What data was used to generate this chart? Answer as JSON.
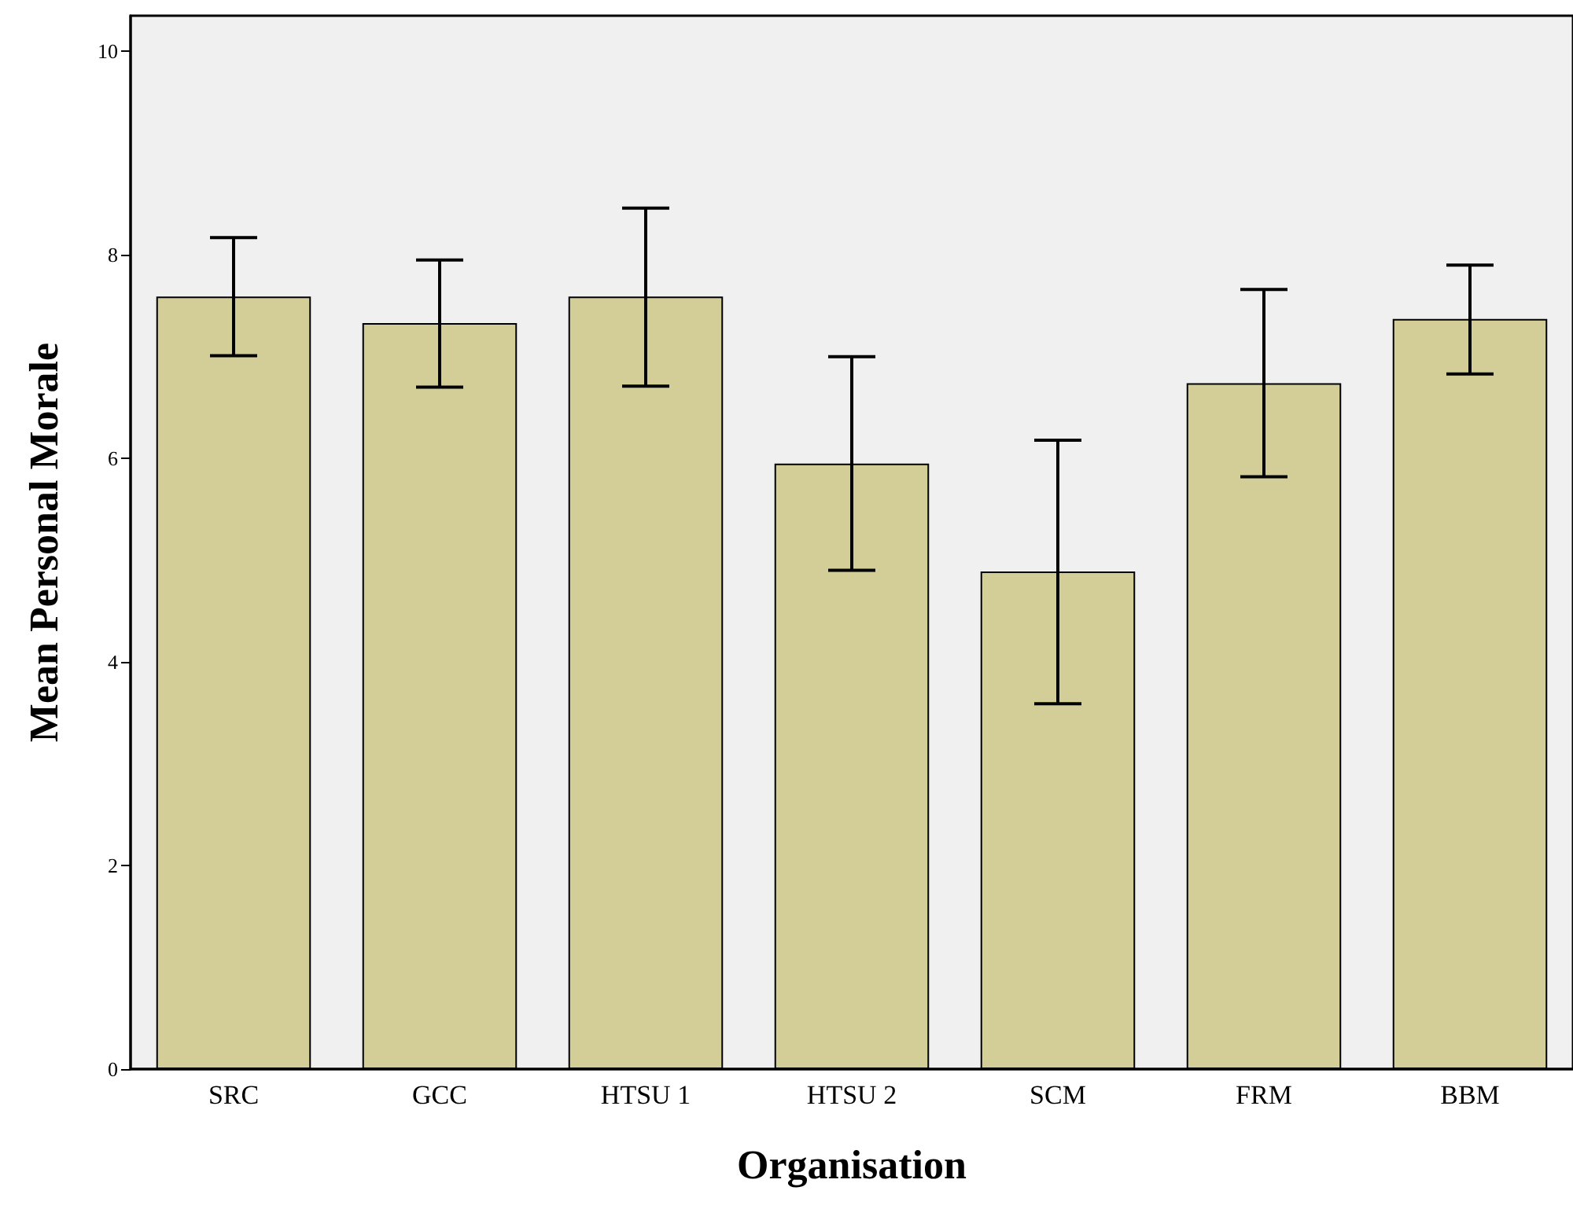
{
  "chart_data": {
    "type": "bar",
    "xlabel": "Organisation",
    "ylabel": "Mean Personal Morale",
    "categories": [
      "SRC",
      "GCC",
      "HTSU 1",
      "HTSU 2",
      "SCM",
      "FRM",
      "BBM"
    ],
    "values": [
      7.59,
      7.33,
      7.59,
      5.95,
      4.89,
      6.74,
      7.37
    ],
    "errors": [
      [
        7.01,
        8.17
      ],
      [
        6.7,
        7.95
      ],
      [
        6.71,
        8.46
      ],
      [
        4.9,
        7.0
      ],
      [
        3.59,
        6.18
      ],
      [
        5.82,
        7.66
      ],
      [
        6.83,
        7.9
      ]
    ],
    "color": "#d3ce98",
    "ylim": [
      0,
      10.35
    ],
    "yticks": [
      0,
      2,
      4,
      6,
      8,
      10
    ],
    "grid": false
  }
}
